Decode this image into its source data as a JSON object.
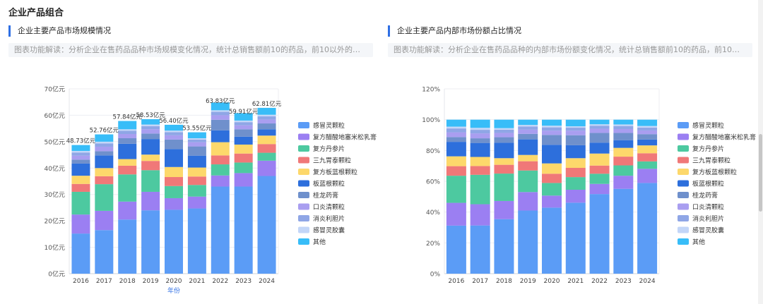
{
  "page": {
    "title": "企业产品组合"
  },
  "left_panel": {
    "title": "企业主要产品市场规模情况",
    "description": "图表功能解读：分析企业在售药品品种市场规模变化情况，统计总销售额前10的药品，前10以外的统..."
  },
  "right_panel": {
    "title": "企业主要产品内部市场份额占比情况",
    "description": "图表功能解读：分析企业在售药品品种的内部市场份额变化情况，统计总销售额前10的药品，前10以..."
  },
  "chart_data": [
    {
      "type": "bar",
      "stacked": true,
      "categories": [
        "2016",
        "2017",
        "2018",
        "2019",
        "2020",
        "2021",
        "2022",
        "2023",
        "2024"
      ],
      "xlabel": "年份",
      "ylabel": "",
      "ylim": [
        0,
        70
      ],
      "yticks": [
        0,
        10,
        20,
        30,
        40,
        50,
        60,
        70
      ],
      "ytick_labels": [
        "0亿元",
        "10亿元",
        "20亿元",
        "30亿元",
        "40亿元",
        "50亿元",
        "60亿元",
        "70亿元"
      ],
      "total_labels": [
        "48.73亿元",
        "52.76亿元",
        "57.84亿元",
        "58.53亿元",
        "56.40亿元",
        "53.55亿元",
        "63.83亿元",
        "59.91亿元",
        "62.81亿元"
      ],
      "totals": [
        48.73,
        52.76,
        57.84,
        58.53,
        56.4,
        53.55,
        63.83,
        59.91,
        62.81
      ],
      "grid": true,
      "legend_position": "right",
      "series": [
        {
          "name": "感冒灵颗粒",
          "color": "#5b9cf6",
          "values": [
            15.2,
            16.5,
            20.5,
            24.0,
            24.2,
            24.7,
            33.0,
            33.0,
            37.0
          ]
        },
        {
          "name": "复方醋酸地塞米松乳膏",
          "color": "#9b7ff2",
          "values": [
            7.2,
            7.3,
            6.8,
            7.0,
            4.4,
            4.5,
            4.2,
            5.1,
            5.8
          ]
        },
        {
          "name": "复方丹参片",
          "color": "#4dc9a0",
          "values": [
            8.6,
            10.1,
            10.3,
            8.2,
            4.6,
            4.4,
            4.2,
            4.0,
            3.0
          ]
        },
        {
          "name": "三九胃泰颗粒",
          "color": "#f07878",
          "values": [
            3.0,
            3.0,
            3.3,
            3.5,
            3.4,
            3.2,
            3.4,
            3.4,
            3.3
          ]
        },
        {
          "name": "复方板蓝根颗粒",
          "color": "#fdd86b",
          "values": [
            3.1,
            3.1,
            2.5,
            2.4,
            3.8,
            3.4,
            5.0,
            3.4,
            3.2
          ]
        },
        {
          "name": "板蓝根颗粒",
          "color": "#2d6fdc",
          "values": [
            4.6,
            4.8,
            5.8,
            5.9,
            6.8,
            4.5,
            4.5,
            3.0,
            2.4
          ]
        },
        {
          "name": "桂龙药膏",
          "color": "#6f90cc",
          "values": [
            1.5,
            1.6,
            2.1,
            2.1,
            3.6,
            3.5,
            4.0,
            2.8,
            2.2
          ]
        },
        {
          "name": "口炎清颗粒",
          "color": "#a99ef0",
          "values": [
            1.5,
            1.7,
            1.6,
            1.6,
            1.6,
            1.6,
            1.7,
            1.5,
            1.5
          ]
        },
        {
          "name": "消炎利胆片",
          "color": "#8fa6e6",
          "values": [
            1.2,
            1.2,
            1.2,
            1.2,
            1.2,
            1.0,
            1.3,
            1.2,
            1.2
          ]
        },
        {
          "name": "感冒灵胶囊",
          "color": "#c3d6f8",
          "values": [
            0.6,
            0.7,
            0.6,
            0.6,
            0.6,
            0.5,
            0.6,
            0.6,
            0.6
          ]
        },
        {
          "name": "其他",
          "color": "#38bdf8",
          "values": [
            2.23,
            2.76,
            3.14,
            2.03,
            2.2,
            2.25,
            2.93,
            2.81,
            2.61
          ]
        }
      ]
    },
    {
      "type": "bar",
      "stacked": true,
      "categories": [
        "2016",
        "2017",
        "2018",
        "2019",
        "2020",
        "2021",
        "2022",
        "2023",
        "2024"
      ],
      "xlabel": "",
      "ylabel": "",
      "ylim": [
        0,
        120
      ],
      "yticks": [
        0,
        20,
        40,
        60,
        80,
        100,
        120
      ],
      "ytick_labels": [
        "0%",
        "20%",
        "40%",
        "60%",
        "80%",
        "100%",
        "120%"
      ],
      "grid": true,
      "legend_position": "right",
      "series": [
        {
          "name": "感冒灵颗粒",
          "color": "#5b9cf6",
          "values": [
            31.2,
            31.3,
            35.4,
            41.0,
            42.9,
            46.1,
            51.7,
            55.1,
            58.9
          ]
        },
        {
          "name": "复方醋酸地塞米松乳膏",
          "color": "#9b7ff2",
          "values": [
            14.8,
            13.8,
            11.8,
            12.0,
            7.8,
            8.4,
            6.6,
            8.5,
            9.2
          ]
        },
        {
          "name": "复方丹参片",
          "color": "#4dc9a0",
          "values": [
            17.6,
            19.1,
            17.8,
            14.0,
            8.2,
            8.2,
            6.6,
            6.7,
            4.8
          ]
        },
        {
          "name": "三九胃泰颗粒",
          "color": "#f07878",
          "values": [
            6.2,
            5.7,
            5.7,
            6.0,
            6.0,
            6.0,
            5.3,
            5.7,
            5.3
          ]
        },
        {
          "name": "复方板蓝根颗粒",
          "color": "#fdd86b",
          "values": [
            6.4,
            5.9,
            4.3,
            4.1,
            6.7,
            6.3,
            7.8,
            5.7,
            5.1
          ]
        },
        {
          "name": "板蓝根颗粒",
          "color": "#2d6fdc",
          "values": [
            9.4,
            9.1,
            10.0,
            10.1,
            12.1,
            8.4,
            7.1,
            5.0,
            3.8
          ]
        },
        {
          "name": "桂龙药膏",
          "color": "#6f90cc",
          "values": [
            3.1,
            3.0,
            3.6,
            3.6,
            6.4,
            6.5,
            6.3,
            4.7,
            3.5
          ]
        },
        {
          "name": "口炎清颗粒",
          "color": "#a99ef0",
          "values": [
            3.1,
            3.2,
            2.8,
            2.7,
            2.8,
            3.0,
            2.7,
            2.5,
            2.4
          ]
        },
        {
          "name": "消炎利胆片",
          "color": "#8fa6e6",
          "values": [
            2.5,
            2.3,
            2.1,
            2.1,
            2.1,
            1.9,
            2.0,
            2.0,
            1.9
          ]
        },
        {
          "name": "感冒灵胶囊",
          "color": "#c3d6f8",
          "values": [
            1.2,
            1.3,
            1.0,
            1.0,
            1.1,
            0.9,
            0.9,
            1.0,
            1.0
          ]
        },
        {
          "name": "其他",
          "color": "#38bdf8",
          "values": [
            4.5,
            5.3,
            5.5,
            3.4,
            3.9,
            4.3,
            3.0,
            3.1,
            4.1
          ]
        }
      ]
    }
  ]
}
